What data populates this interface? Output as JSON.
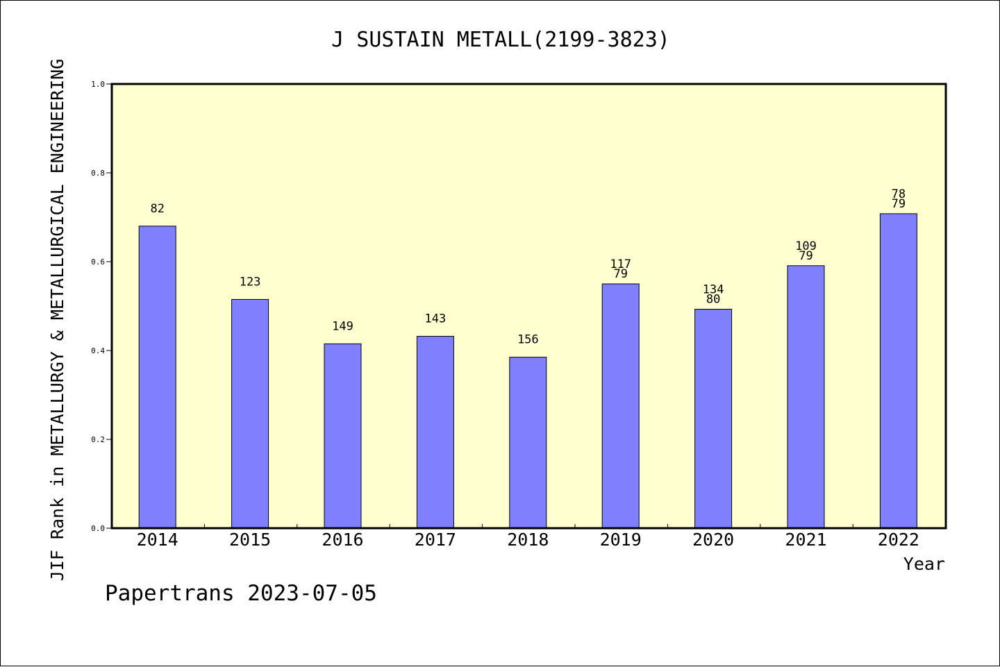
{
  "chart_data": {
    "type": "bar",
    "title": "J SUSTAIN METALL(2199-3823)",
    "xlabel": "Year",
    "ylabel": "JIF Rank in METALLURGY & METALLURGICAL ENGINEERING",
    "ylim": [
      0,
      1.0
    ],
    "yticks": [
      "0.0",
      "0.2",
      "0.4",
      "0.6",
      "0.8",
      "1.0"
    ],
    "categories": [
      "2014",
      "2015",
      "2016",
      "2017",
      "2018",
      "2019",
      "2020",
      "2021",
      "2022"
    ],
    "values": [
      0.68,
      0.515,
      0.415,
      0.432,
      0.385,
      0.55,
      0.493,
      0.591,
      0.708
    ],
    "labels": [
      [
        "82"
      ],
      [
        "123"
      ],
      [
        "149"
      ],
      [
        "143"
      ],
      [
        "156"
      ],
      [
        "117",
        "79"
      ],
      [
        "134",
        "80"
      ],
      [
        "109",
        "79"
      ],
      [
        "78",
        "79"
      ]
    ],
    "colors": {
      "plot_bg": "#ffffd0",
      "bar": "#8080ff",
      "axis": "#000000"
    },
    "grid": false
  },
  "footer": "Papertrans 2023-07-05"
}
